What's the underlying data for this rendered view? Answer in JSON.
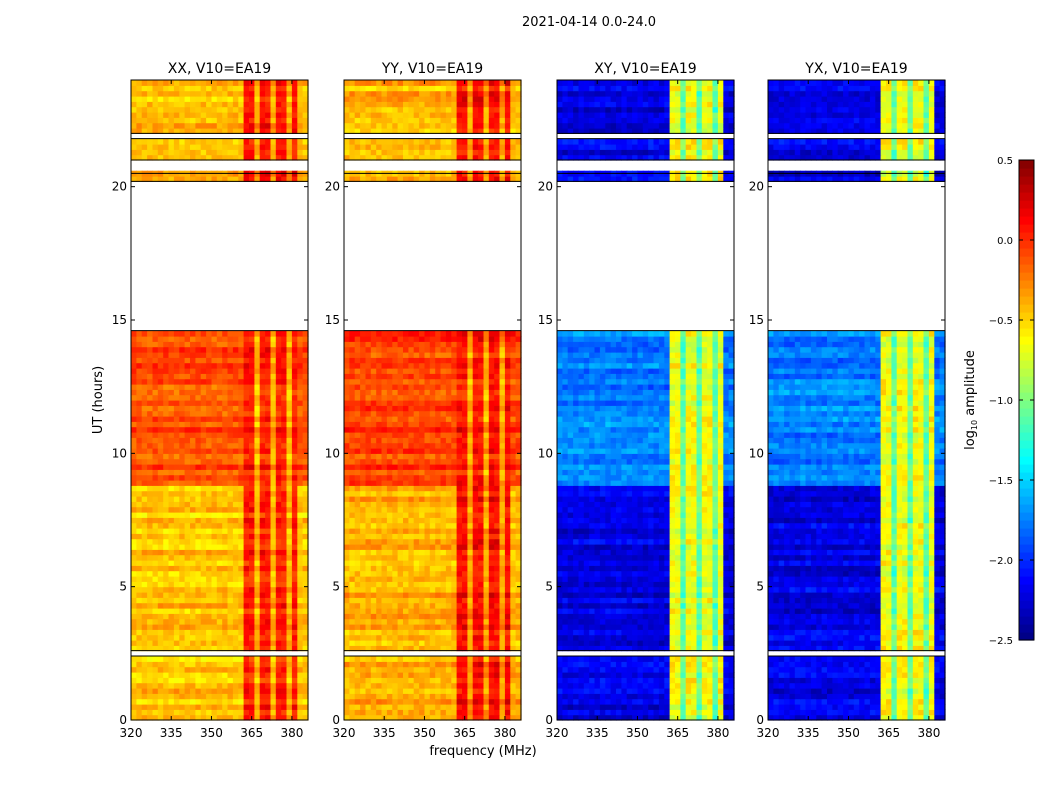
{
  "chart_data": {
    "type": "heatmap",
    "title": "2021-04-14 0.0-24.0",
    "xlabel": "frequency (MHz)",
    "ylabel": "UT (hours)",
    "xlim": [
      320,
      386
    ],
    "ylim": [
      0,
      24
    ],
    "xticks": [
      "320",
      "335",
      "350",
      "365",
      "380"
    ],
    "xtick_values": [
      320,
      335,
      350,
      365,
      380
    ],
    "yticks": [
      "0",
      "5",
      "10",
      "15",
      "20"
    ],
    "ytick_values": [
      0,
      5,
      10,
      15,
      20
    ],
    "colorbar": {
      "label": "log10 amplitude",
      "label_main": "log",
      "label_sub": "10",
      "label_rest": " amplitude",
      "range": [
        -2.5,
        0.5
      ],
      "colormap": "jet",
      "ticks": [
        "0.5",
        "0.0",
        "−0.5",
        "−1.0",
        "−1.5",
        "−2.0",
        "−2.5"
      ],
      "tick_values": [
        0.5,
        0.0,
        -0.5,
        -1.0,
        -1.5,
        -2.0,
        -2.5
      ]
    },
    "data_gaps_hours": [
      [
        2.4,
        2.6
      ],
      [
        14.6,
        20.2
      ],
      [
        20.5,
        21.0
      ],
      [
        21.8,
        22.0
      ]
    ],
    "panels": [
      {
        "title": "XX, V10=EA19",
        "base": -0.45,
        "band": -0.05,
        "band_range_mhz": [
          362,
          382
        ],
        "active_period_hours": [
          8.8,
          14.6
        ],
        "active_level": -0.1
      },
      {
        "title": "YY, V10=EA19",
        "base": -0.4,
        "band": 0.0,
        "band_range_mhz": [
          362,
          382
        ],
        "active_period_hours": [
          8.8,
          14.6
        ],
        "active_level": -0.05
      },
      {
        "title": "XY, V10=EA19",
        "base": -2.2,
        "band": -0.75,
        "band_range_mhz": [
          362,
          382
        ],
        "active_period_hours": [
          8.8,
          14.6
        ],
        "active_level": -1.75
      },
      {
        "title": "YX, V10=EA19",
        "base": -2.2,
        "band": -0.75,
        "band_range_mhz": [
          362,
          382
        ],
        "active_period_hours": [
          8.8,
          14.6
        ],
        "active_level": -1.75
      }
    ]
  }
}
